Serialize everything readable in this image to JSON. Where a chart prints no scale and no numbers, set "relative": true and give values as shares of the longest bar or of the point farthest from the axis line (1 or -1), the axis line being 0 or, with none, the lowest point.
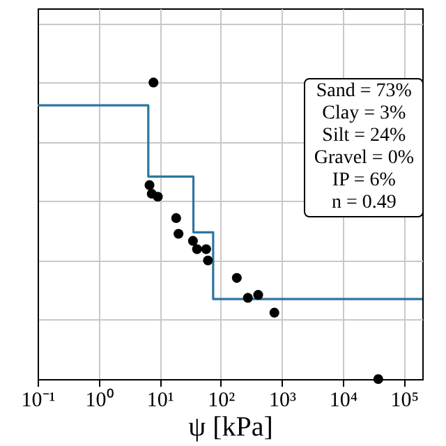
{
  "chart_data": {
    "type": "scatter",
    "relative": true,
    "log": "x",
    "grid": true,
    "xlabel": "ψ [kPa]",
    "xlim": [
      0.1,
      200000
    ],
    "xticks": [
      {
        "value": 0.1,
        "label": "10⁻¹"
      },
      {
        "value": 1,
        "label": "10⁰"
      },
      {
        "value": 10,
        "label": "10¹"
      },
      {
        "value": 100,
        "label": "10²"
      },
      {
        "value": 1000,
        "label": "10³"
      },
      {
        "value": 10000,
        "label": "10⁴"
      },
      {
        "value": 100000,
        "label": "10⁵"
      }
    ],
    "annotations": [
      "Sand = 73%",
      "Clay = 3%",
      "Silt = 24%",
      "Gravel = 0%",
      "IP = 6%",
      "n = 0.49"
    ],
    "series": [
      {
        "marker": "circle",
        "color": "#000000",
        "x": [
          7.9,
          6.8,
          7.4,
          9.3,
          18.6,
          20.3,
          35,
          40.8,
          57.6,
          61.6,
          183,
          278,
          410,
          755,
          38000
        ],
        "values": [
          1,
          0.654,
          0.625,
          0.615,
          0.543,
          0.49,
          0.466,
          0.438,
          0.438,
          0.4,
          0.341,
          0.274,
          0.284,
          0.224,
          0
        ]
      },
      {
        "type": "step",
        "color": "#2e75a0",
        "x": [
          0.1,
          6.5,
          35.6,
          75,
          200000
        ],
        "values": [
          0.923,
          0.683,
          0.495,
          0.27,
          0.27
        ]
      }
    ]
  }
}
